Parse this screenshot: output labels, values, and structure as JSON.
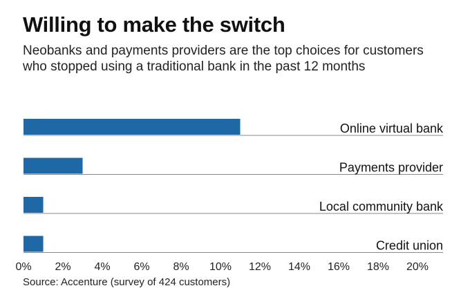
{
  "chart_data": {
    "type": "bar",
    "orientation": "horizontal",
    "title": "Willing to make the switch",
    "subtitle": "Neobanks and payments providers are the top choices for customers who stopped using a traditional bank in the past 12 months",
    "categories": [
      "Online virtual bank",
      "Payments provider",
      "Local community bank",
      "Credit union"
    ],
    "values": [
      11,
      3,
      1,
      1
    ],
    "unit": "%",
    "xlim": [
      0,
      21
    ],
    "x_ticks": [
      "0%",
      "2%",
      "4%",
      "6%",
      "8%",
      "10%",
      "12%",
      "14%",
      "16%",
      "18%",
      "20%"
    ],
    "tick_values": [
      0,
      2,
      4,
      6,
      8,
      10,
      12,
      14,
      16,
      18,
      20
    ],
    "grid": false,
    "bar_color": "#1f68a6",
    "source": "Source: Accenture (survey of 424 customers)"
  }
}
